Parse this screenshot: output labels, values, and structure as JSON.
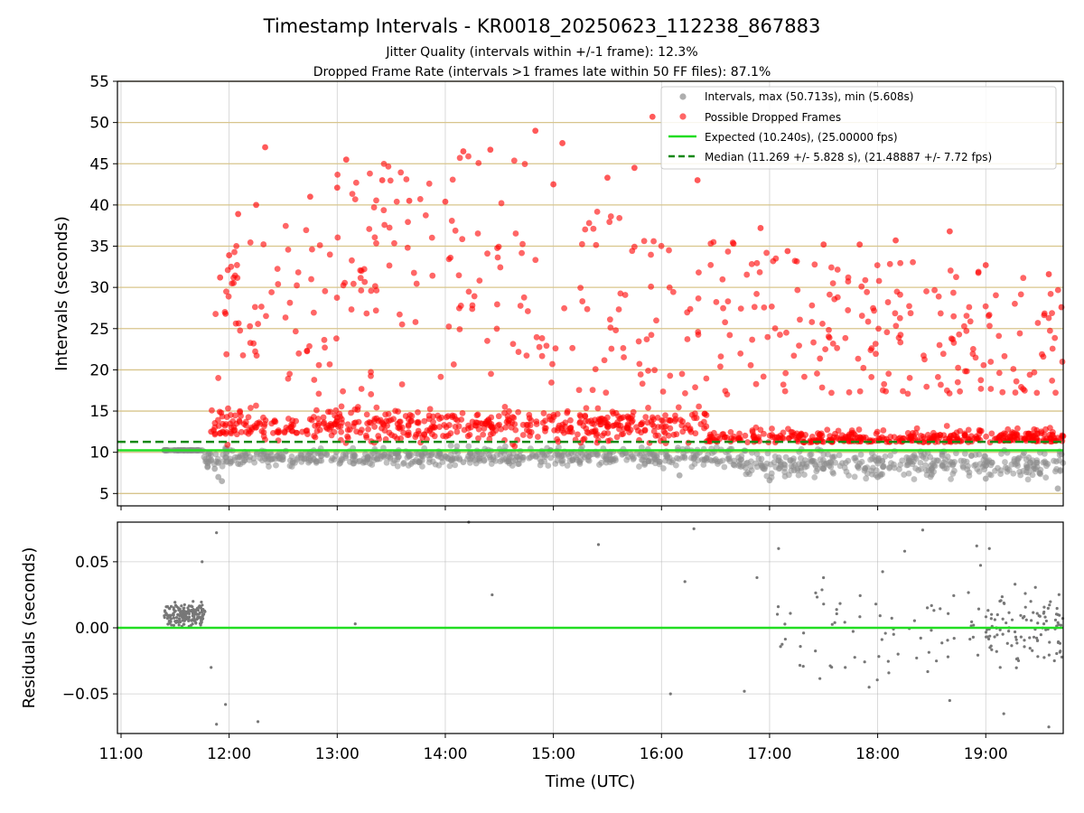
{
  "figure": {
    "title": "Timestamp Intervals - KR0018_20250623_112238_867883",
    "subtitle_1": "Jitter Quality (intervals within +/-1 frame): 12.3%",
    "subtitle_2": "Dropped Frame Rate (intervals >1 frames late within 50 FF files): 87.1%"
  },
  "chart_data": [
    {
      "type": "scatter",
      "xlabel": "",
      "ylabel": "Intervals (seconds)",
      "x_unit": "time (UTC)",
      "xlim": [
        "10:58",
        "19:43"
      ],
      "ylim": [
        3.5,
        55
      ],
      "yticks": [
        5,
        10,
        15,
        20,
        25,
        30,
        35,
        40,
        45,
        50,
        55
      ],
      "xticks": [
        "11:00",
        "12:00",
        "13:00",
        "14:00",
        "15:00",
        "16:00",
        "17:00",
        "18:00",
        "19:00"
      ],
      "grid": true,
      "gridline_color": "#d8c58c",
      "legend_position": "top-right",
      "legend": [
        "Intervals, max (50.713s), min (5.608s)",
        "Possible Dropped Frames",
        "Expected (10.240s), (25.00000 fps)",
        "Median (11.269 +/- 5.828 s), (21.48887 +/- 7.72 fps)"
      ],
      "series": [
        {
          "name": "Intervals, max (50.713s), min (5.608s)",
          "color": "#8c8c8c",
          "points_sample": [
            [
              "11:25",
              10.24
            ],
            [
              "11:35",
              10.24
            ],
            [
              "11:45",
              10.24
            ],
            [
              "11:48",
              8.2
            ],
            [
              "11:50",
              9.1
            ],
            [
              "11:52",
              8.0
            ],
            [
              "11:54",
              7.0
            ],
            [
              "11:56",
              6.5
            ],
            [
              "11:58",
              9.4
            ],
            [
              "12:05",
              8.6
            ],
            [
              "12:20",
              9.2
            ],
            [
              "12:40",
              9.6
            ],
            [
              "13:10",
              9.0
            ],
            [
              "13:40",
              9.5
            ],
            [
              "14:10",
              8.8
            ],
            [
              "14:40",
              9.4
            ],
            [
              "15:10",
              9.9
            ],
            [
              "15:40",
              10.0
            ],
            [
              "16:10",
              7.2
            ],
            [
              "16:40",
              8.5
            ],
            [
              "17:00",
              6.6
            ],
            [
              "17:30",
              8.0
            ],
            [
              "18:00",
              7.0
            ],
            [
              "18:30",
              7.3
            ],
            [
              "19:00",
              6.8
            ],
            [
              "19:30",
              7.5
            ],
            [
              "19:40",
              5.6
            ]
          ]
        },
        {
          "name": "Possible Dropped Frames",
          "color": "#ff0000",
          "points_sample": [
            [
              "11:50",
              12.5
            ],
            [
              "11:55",
              31.2
            ],
            [
              "11:58",
              26.8
            ],
            [
              "12:00",
              33.9
            ],
            [
              "12:05",
              38.9
            ],
            [
              "12:15",
              40.0
            ],
            [
              "12:20",
              47.0
            ],
            [
              "12:45",
              41.0
            ],
            [
              "13:00",
              42.1
            ],
            [
              "13:05",
              45.5
            ],
            [
              "13:25",
              43.0
            ],
            [
              "13:40",
              40.5
            ],
            [
              "14:00",
              40.4
            ],
            [
              "14:10",
              46.5
            ],
            [
              "14:25",
              46.7
            ],
            [
              "14:50",
              49.0
            ],
            [
              "15:00",
              42.5
            ],
            [
              "15:05",
              47.5
            ],
            [
              "15:30",
              43.3
            ],
            [
              "15:45",
              44.5
            ],
            [
              "15:55",
              50.7
            ],
            [
              "16:20",
              43.0
            ],
            [
              "16:40",
              35.3
            ],
            [
              "16:55",
              37.2
            ],
            [
              "17:10",
              34.4
            ],
            [
              "17:30",
              35.2
            ],
            [
              "17:50",
              35.2
            ],
            [
              "18:10",
              35.7
            ],
            [
              "18:40",
              36.8
            ],
            [
              "19:00",
              32.7
            ],
            [
              "19:35",
              31.6
            ],
            [
              "19:42",
              27.6
            ]
          ]
        },
        {
          "name": "Expected (10.240s), (25.00000 fps)",
          "style": "solid line",
          "color": "#22dd22",
          "y": 10.24
        },
        {
          "name": "Median (11.269 +/- 5.828 s), (21.48887 +/- 7.72 fps)",
          "style": "dashed line",
          "color": "#118811",
          "y": 11.269
        }
      ]
    },
    {
      "type": "scatter",
      "xlabel": "Time (UTC)",
      "ylabel": "Residuals (seconds)",
      "xlim": [
        "10:58",
        "19:43"
      ],
      "ylim": [
        -0.08,
        0.08
      ],
      "yticks": [
        0.05,
        0.0,
        -0.05
      ],
      "ytick_labels": [
        "0.05",
        "0.00",
        "−0.05"
      ],
      "xticks": [
        "11:00",
        "12:00",
        "13:00",
        "14:00",
        "15:00",
        "16:00",
        "17:00",
        "18:00",
        "19:00"
      ],
      "grid": true,
      "series": [
        {
          "name": "",
          "color": "#777777",
          "points_sample": [
            [
              "11:25",
              0.01
            ],
            [
              "11:30",
              0.005
            ],
            [
              "11:35",
              0.015
            ],
            [
              "11:40",
              0.02
            ],
            [
              "11:45",
              0.05
            ],
            [
              "11:50",
              -0.03
            ],
            [
              "11:53",
              0.072
            ],
            [
              "11:53",
              -0.073
            ],
            [
              "11:58",
              -0.058
            ],
            [
              "12:16",
              -0.071
            ],
            [
              "13:10",
              0.003
            ],
            [
              "14:13",
              0.08
            ],
            [
              "14:26",
              0.025
            ],
            [
              "15:25",
              0.063
            ],
            [
              "16:05",
              -0.05
            ],
            [
              "16:13",
              0.035
            ],
            [
              "16:18",
              0.075
            ],
            [
              "16:46",
              -0.048
            ],
            [
              "16:53",
              0.038
            ],
            [
              "17:05",
              0.06
            ],
            [
              "17:30",
              0.018
            ],
            [
              "17:42",
              -0.03
            ],
            [
              "17:59",
              0.018
            ],
            [
              "18:15",
              0.058
            ],
            [
              "18:25",
              0.074
            ],
            [
              "18:40",
              -0.055
            ],
            [
              "18:55",
              0.062
            ],
            [
              "19:02",
              0.06
            ],
            [
              "19:10",
              -0.065
            ],
            [
              "19:25",
              0.02
            ],
            [
              "19:35",
              -0.075
            ],
            [
              "19:40",
              0.01
            ]
          ]
        },
        {
          "name": "",
          "style": "solid line",
          "color": "#22dd22",
          "y": 0.0
        }
      ]
    }
  ]
}
